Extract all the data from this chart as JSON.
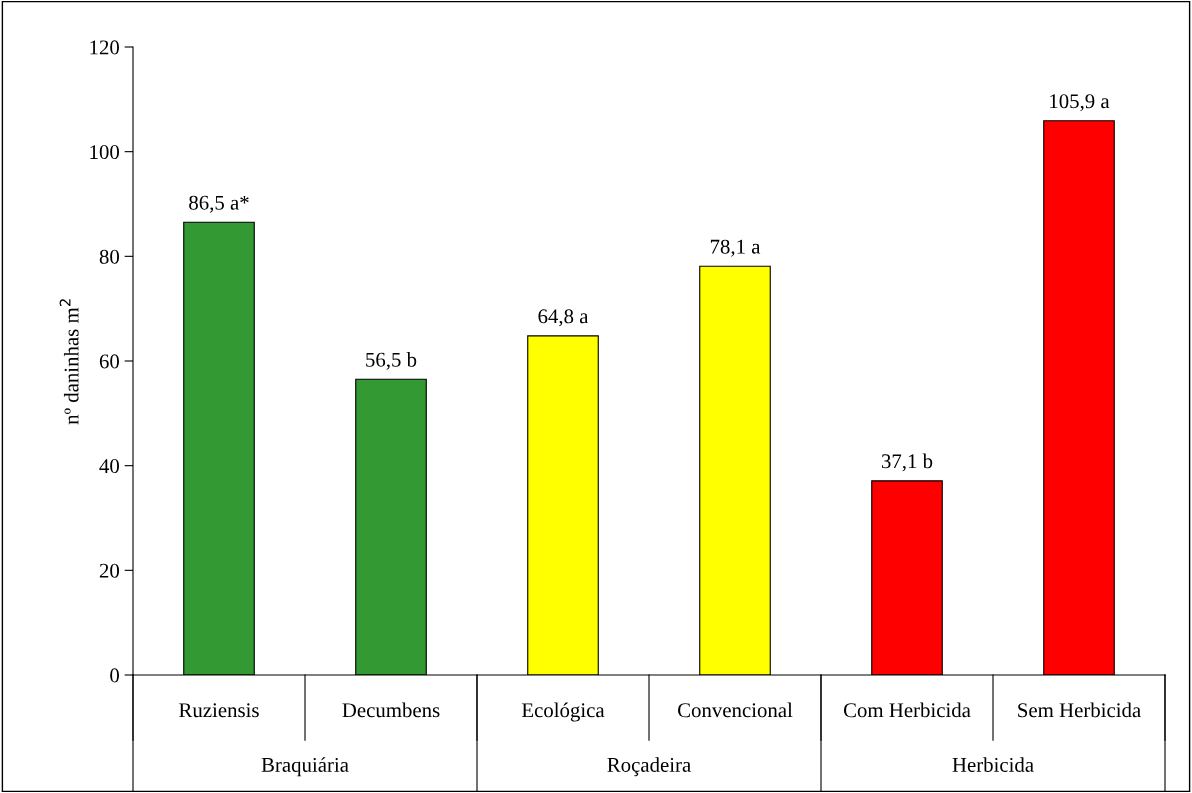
{
  "chart_data": {
    "type": "bar",
    "ylabel": "nº daninhas m$^{2}$",
    "categories": [
      "Ruziensis",
      "Decumbens",
      "Ecológica",
      "Convencional",
      "Com Herbicida",
      "Sem Herbicida"
    ],
    "values": [
      86.5,
      56.5,
      64.8,
      78.1,
      37.1,
      105.9
    ],
    "colors": [
      "#339933",
      "#339933",
      "#ffff00",
      "#ffff00",
      "#ff0000",
      "#ff0000"
    ],
    "value_labels": [
      "86,5 a*",
      "56,5 b",
      "64,8 a",
      "78,1 a",
      "37,1 b",
      "105,9 a"
    ],
    "annotations": [
      "Braquiária",
      "Roçadeira",
      "Herbicida"
    ],
    "ylim": [
      0,
      120
    ],
    "yticks": [
      0,
      20,
      40,
      60,
      80,
      100,
      120
    ],
    "grid": false,
    "legend": false
  }
}
